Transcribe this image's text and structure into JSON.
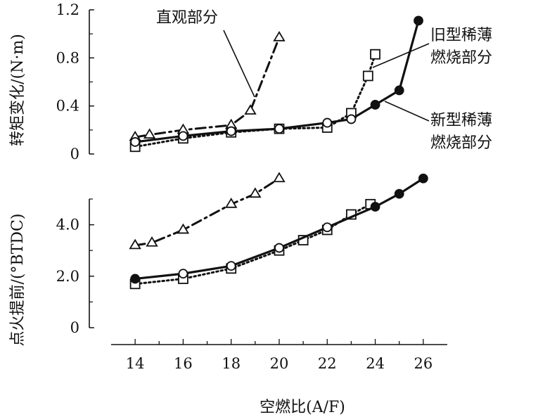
{
  "chart_data": [
    {
      "type": "line",
      "panel": "top",
      "ylabel": "转矩变化/(N·m)",
      "ylim": [
        0,
        1.2
      ],
      "yticks": [
        "0",
        "0.4",
        "0.8",
        "1.2"
      ],
      "xlim": [
        13,
        27
      ],
      "series": [
        {
          "name": "直观部分",
          "marker": "triangle-open",
          "line": "dash-dot",
          "x": [
            14,
            14.6,
            16,
            18,
            18.8,
            20
          ],
          "y": [
            0.14,
            0.16,
            0.2,
            0.24,
            0.36,
            0.97
          ]
        },
        {
          "name": "旧型稀薄燃烧部分",
          "marker": "square-open",
          "line": "dotted",
          "x": [
            14,
            16,
            18,
            20,
            22,
            23,
            23.7,
            24
          ],
          "y": [
            0.06,
            0.13,
            0.18,
            0.21,
            0.22,
            0.34,
            0.65,
            0.83
          ]
        },
        {
          "name": "新型稀薄燃烧部分",
          "marker": "circle-filled-and-open",
          "line": "solid",
          "x": [
            14,
            16,
            18,
            20,
            22,
            23,
            24,
            25,
            25.8
          ],
          "y": [
            0.1,
            0.15,
            0.19,
            0.21,
            0.26,
            0.29,
            0.41,
            0.53,
            1.11
          ]
        }
      ],
      "annotations": [
        "直观部分",
        "旧型稀薄燃烧部分",
        "新型稀薄燃烧部分"
      ]
    },
    {
      "type": "line",
      "panel": "bottom",
      "ylabel": "点火提前/(°BTDC)",
      "ylim": [
        0,
        5
      ],
      "yticks": [
        "0",
        "2.0",
        "4.0"
      ],
      "xlabel": "空燃比(A/F)",
      "xticks": [
        "14",
        "16",
        "18",
        "20",
        "22",
        "24",
        "26"
      ],
      "xlim": [
        13,
        27
      ],
      "series": [
        {
          "name": "直观部分",
          "marker": "triangle-open",
          "line": "dash-dot",
          "x": [
            14,
            14.7,
            16,
            18,
            19,
            20
          ],
          "y": [
            3.2,
            3.3,
            3.8,
            4.8,
            5.2,
            5.8
          ]
        },
        {
          "name": "旧型稀薄燃烧部分",
          "marker": "square-open",
          "line": "dotted",
          "x": [
            14,
            16,
            18,
            20,
            21,
            22,
            23,
            23.8
          ],
          "y": [
            1.7,
            1.9,
            2.3,
            3.0,
            3.4,
            3.8,
            4.4,
            4.8
          ]
        },
        {
          "name": "新型稀薄燃烧部分",
          "marker": "circle-filled-and-open",
          "line": "solid",
          "x": [
            14,
            16,
            18,
            20,
            22,
            24,
            25,
            26
          ],
          "y": [
            1.9,
            2.1,
            2.4,
            3.1,
            3.9,
            4.7,
            5.2,
            5.8
          ]
        }
      ]
    }
  ]
}
